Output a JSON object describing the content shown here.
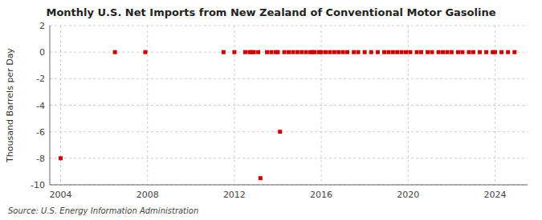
{
  "chart_data": {
    "type": "scatter",
    "title": "Monthly U.S. Net Imports from New Zealand of Conventional Motor Gasoline",
    "ylabel": "Thousand Barrels per Day",
    "annotations": [
      "Source: U.S. Energy Information Administration"
    ],
    "color": "#cc0000",
    "marker": "square",
    "grid": true,
    "xlim": [
      2003.5,
      2025.5
    ],
    "xticks": [
      2004,
      2008,
      2012,
      2016,
      2020,
      2024
    ],
    "ylim": [
      -10,
      2
    ],
    "yticks": [
      -10,
      -8,
      -6,
      -4,
      -2,
      0,
      2
    ],
    "x": [
      2004.0,
      2006.5,
      2007.9,
      2011.5,
      2012.0,
      2012.5,
      2012.7,
      2012.8,
      2012.9,
      2013.1,
      2013.2,
      2013.5,
      2013.7,
      2013.9,
      2014.0,
      2014.1,
      2014.3,
      2014.5,
      2014.7,
      2014.9,
      2015.1,
      2015.3,
      2015.5,
      2015.6,
      2015.7,
      2015.9,
      2016.0,
      2016.2,
      2016.4,
      2016.6,
      2016.8,
      2017.0,
      2017.2,
      2017.5,
      2017.7,
      2018.0,
      2018.3,
      2018.6,
      2018.9,
      2019.1,
      2019.3,
      2019.5,
      2019.7,
      2019.9,
      2020.1,
      2020.4,
      2020.6,
      2020.9,
      2021.1,
      2021.4,
      2021.6,
      2021.8,
      2022.0,
      2022.3,
      2022.5,
      2022.8,
      2023.0,
      2023.3,
      2023.6,
      2023.9,
      2024.0,
      2024.3,
      2024.6,
      2024.9
    ],
    "values": [
      -8.0,
      0.0,
      0.0,
      0.0,
      0.0,
      0.0,
      0.0,
      0.0,
      0.0,
      0.0,
      -9.5,
      0.0,
      0.0,
      0.0,
      0.0,
      -6.0,
      0.0,
      0.0,
      0.0,
      0.0,
      0.0,
      0.0,
      0.0,
      0.0,
      0.0,
      0.0,
      0.0,
      0.0,
      0.0,
      0.0,
      0.0,
      0.0,
      0.0,
      0.0,
      0.0,
      0.0,
      0.0,
      0.0,
      0.0,
      0.0,
      0.0,
      0.0,
      0.0,
      0.0,
      0.0,
      0.0,
      0.0,
      0.0,
      0.0,
      0.0,
      0.0,
      0.0,
      0.0,
      0.0,
      0.0,
      0.0,
      0.0,
      0.0,
      0.0,
      0.0,
      0.0,
      0.0,
      0.0,
      0.0
    ]
  }
}
